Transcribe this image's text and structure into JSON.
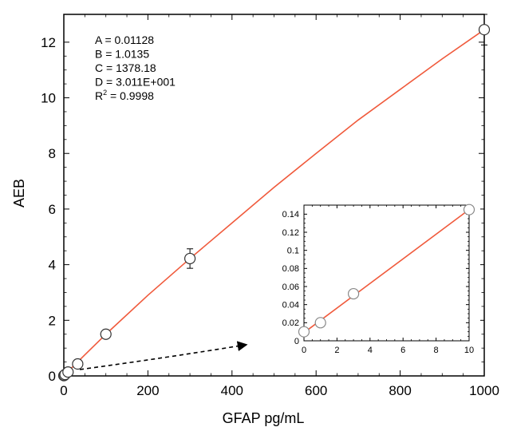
{
  "chart_data": [
    {
      "type": "scatter",
      "xlabel": "GFAP pg/mL",
      "ylabel": "AEB",
      "xlim": [
        0,
        1000
      ],
      "ylim": [
        0,
        13
      ],
      "xticks": [
        0,
        200,
        400,
        600,
        800,
        1000
      ],
      "yticks": [
        0,
        2,
        4,
        6,
        8,
        10,
        12
      ],
      "grid": false,
      "series": [
        {
          "markers": "open-circle",
          "points": [
            {
              "x": 0,
              "y": 0.01
            },
            {
              "x": 1,
              "y": 0.02
            },
            {
              "x": 3,
              "y": 0.05
            },
            {
              "x": 10,
              "y": 0.14
            },
            {
              "x": 33,
              "y": 0.43
            },
            {
              "x": 100,
              "y": 1.5
            },
            {
              "x": 300,
              "y": 4.22,
              "err": 0.35
            },
            {
              "x": 1000,
              "y": 12.45,
              "err": 0.55
            }
          ]
        }
      ],
      "fit_curve": {
        "color": "#f05a3c",
        "points": [
          [
            0,
            0.01
          ],
          [
            50,
            0.76
          ],
          [
            100,
            1.5
          ],
          [
            200,
            2.9
          ],
          [
            300,
            4.22
          ],
          [
            400,
            5.5
          ],
          [
            500,
            6.78
          ],
          [
            600,
            8.0
          ],
          [
            700,
            9.2
          ],
          [
            800,
            10.3
          ],
          [
            900,
            11.4
          ],
          [
            1000,
            12.45
          ]
        ]
      },
      "annotation_lines": [
        {
          "key": "A",
          "text": "A = 0.01128"
        },
        {
          "key": "B",
          "text": "B = 1.0135"
        },
        {
          "key": "C",
          "text": "C = 1378.18"
        },
        {
          "key": "D",
          "text": "D = 3.011E+001"
        },
        {
          "key": "R",
          "prefix": "R",
          "sup": "2",
          "text": " = 0.9998"
        }
      ]
    },
    {
      "type": "scatter",
      "role": "inset",
      "xlim": [
        0,
        10
      ],
      "ylim": [
        0,
        0.15
      ],
      "xticks": [
        0,
        2,
        4,
        6,
        8,
        10
      ],
      "yticks": [
        0,
        0.02,
        0.04,
        0.06,
        0.08,
        0.1,
        0.12,
        0.14
      ],
      "ytick_labels": [
        "0",
        "0.02",
        "0.04",
        "0.06",
        "0.08",
        "0.1",
        "0.12",
        "0.14"
      ],
      "grid": false,
      "series": [
        {
          "markers": "open-circle",
          "points": [
            {
              "x": 0,
              "y": 0.01
            },
            {
              "x": 1,
              "y": 0.02
            },
            {
              "x": 3,
              "y": 0.052
            },
            {
              "x": 10,
              "y": 0.145
            }
          ]
        }
      ],
      "fit_curve": {
        "color": "#f05a3c",
        "points": [
          [
            0,
            0.009
          ],
          [
            10,
            0.145
          ]
        ]
      }
    }
  ]
}
